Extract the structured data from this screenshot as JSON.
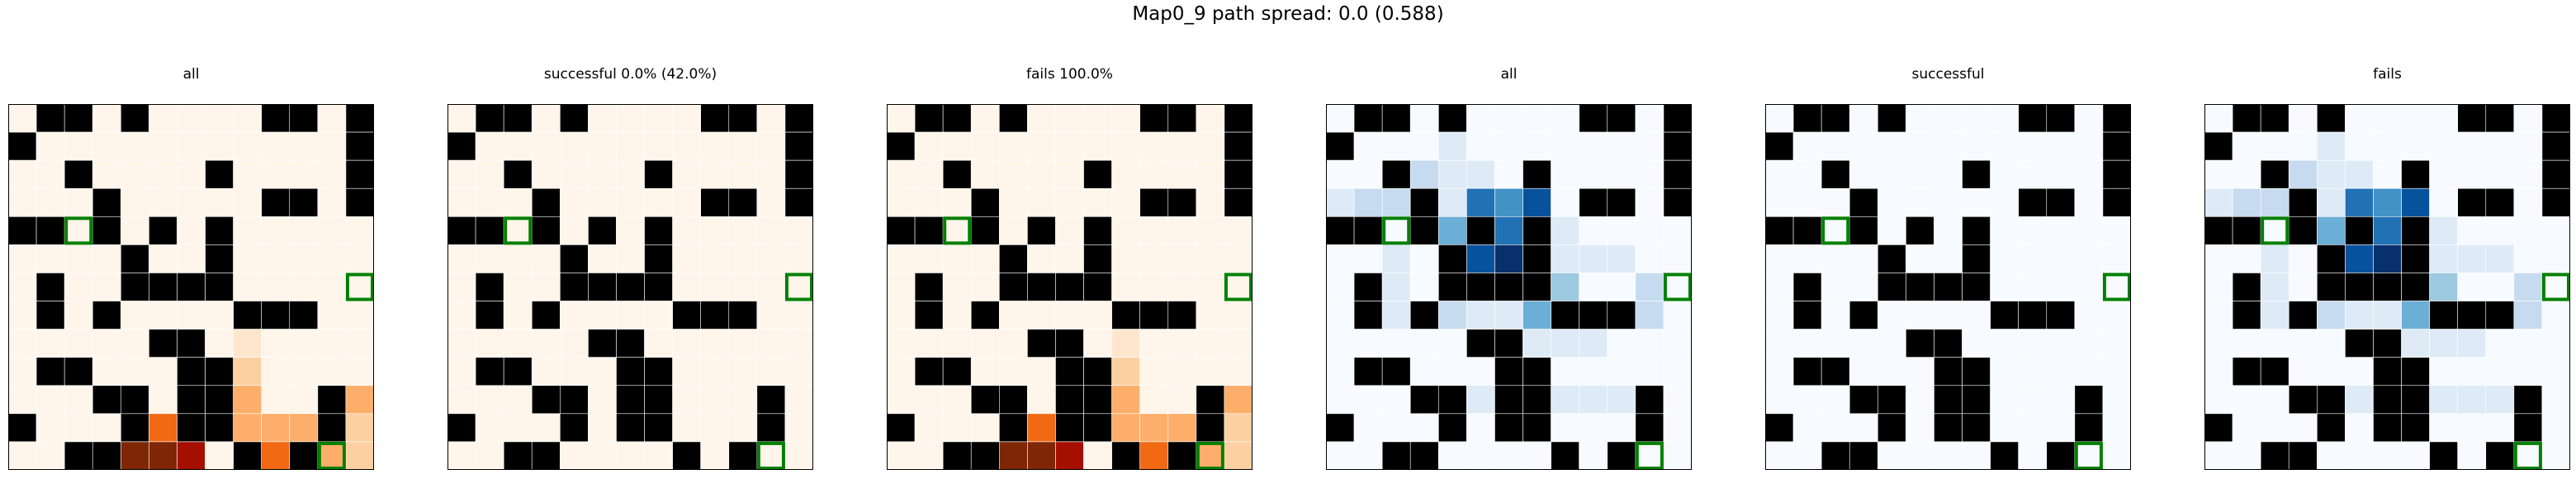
{
  "title": "Map0_9 path spread: 0.0 (0.588)",
  "colors": {
    "wall": "#000000",
    "gridline": "#ffffff",
    "goal_outline": "#008000",
    "frame": "#000000",
    "oranges": [
      "#fff5eb",
      "#fee6ce",
      "#fdd0a2",
      "#fdae6b",
      "#fd8d3c",
      "#f16913",
      "#d94801",
      "#a63603",
      "#7f2704",
      "#a50f00"
    ],
    "blues": [
      "#f7fbff",
      "#deebf7",
      "#c6dbef",
      "#9ecae1",
      "#6baed6",
      "#4292c6",
      "#2171b5",
      "#08519c",
      "#08306b"
    ]
  },
  "chart_data": [
    {
      "type": "heatmap",
      "title": "all",
      "colormap": "oranges",
      "grid": [
        13,
        13
      ],
      "goals": [
        [
          4,
          2
        ],
        [
          6,
          12
        ],
        [
          12,
          11
        ]
      ],
      "walls": "0,1;0,2;0,4;0,9;0,10;0,12;1,0;1,12;2,2;2,7;2,12;3,3;3,9;3,10;3,12;4,0;4,1;4,3;4,5;4,7;5,4;5,7;6,1;6,4;6,5;6,6;6,7;7,1;7,3;7,8;7,9;7,10;8,5;8,6;9,1;9,2;9,6;9,7;10,3;10,4;10,6;10,7;10,11;11,0;11,4;11,6;11,7;11,11;12,2;12,3;12,8;12,10",
      "heat": "8,8,0.15;9,8,0.25;10,8,0.3;11,9,0.3;11,10,0.35;11,12,0.2;12,12,0.25;10,12,0.3;11,5,0.5;11,6,0.4;11,8,0.3;12,4,0.9;12,5,0.9;12,6,1.0;12,9,0.5;12,11,0.3"
    },
    {
      "type": "heatmap",
      "title": "successful 0.0% (42.0%)",
      "colormap": "oranges",
      "grid": [
        13,
        13
      ],
      "goals": [
        [
          4,
          2
        ],
        [
          6,
          12
        ],
        [
          12,
          11
        ]
      ],
      "walls": "0,1;0,2;0,4;0,9;0,10;0,12;1,0;1,12;2,2;2,7;2,12;3,3;3,9;3,10;3,12;4,0;4,1;4,3;4,5;4,7;5,4;5,7;6,1;6,4;6,5;6,6;6,7;7,1;7,3;7,8;7,9;7,10;8,5;8,6;9,1;9,2;9,6;9,7;10,3;10,4;10,6;10,7;10,11;11,0;11,4;11,6;11,7;11,11;12,2;12,3;12,8;12,10",
      "heat": ""
    },
    {
      "type": "heatmap",
      "title": "fails 100.0%",
      "colormap": "oranges",
      "grid": [
        13,
        13
      ],
      "goals": [
        [
          4,
          2
        ],
        [
          6,
          12
        ],
        [
          12,
          11
        ]
      ],
      "walls": "0,1;0,2;0,4;0,9;0,10;0,12;1,0;1,12;2,2;2,7;2,12;3,3;3,9;3,10;3,12;4,0;4,1;4,3;4,5;4,7;5,4;5,7;6,1;6,4;6,5;6,6;6,7;7,1;7,3;7,8;7,9;7,10;8,5;8,6;9,1;9,2;9,6;9,7;10,3;10,4;10,6;10,7;10,11;11,0;11,4;11,6;11,7;11,11;12,2;12,3;12,8;12,10",
      "heat": "8,8,0.15;9,8,0.25;10,8,0.3;11,9,0.3;11,10,0.35;11,12,0.2;12,12,0.25;10,12,0.3;11,5,0.5;11,6,0.4;11,8,0.3;12,4,0.9;12,5,0.9;12,6,1.0;12,9,0.5;12,11,0.3"
    },
    {
      "type": "heatmap",
      "title": "all",
      "colormap": "blues",
      "grid": [
        13,
        13
      ],
      "goals": [
        [
          4,
          2
        ],
        [
          6,
          12
        ],
        [
          12,
          11
        ]
      ],
      "walls": "0,1;0,2;0,4;0,9;0,10;0,12;1,0;1,12;2,2;2,7;2,12;3,3;3,9;3,10;3,12;4,0;4,1;4,3;4,5;4,7;5,4;5,7;6,1;6,4;6,5;6,6;6,7;7,1;7,3;7,8;7,9;7,10;8,5;8,6;9,1;9,2;9,6;9,7;10,3;10,4;10,6;10,7;10,11;11,0;11,4;11,6;11,7;11,11;12,2;12,3;12,8;12,10",
      "heat": "1,4,0.1;2,3,0.2;2,4,0.15;2,5,0.15;3,0,0.1;3,1,0.2;3,2,0.3;3,4,0.1;3,5,0.7;3,6,0.6;3,7,0.85;4,4,0.5;4,6,0.75;4,8,0.1;5,2,0.15;5,5,0.9;5,6,0.95;5,8,0.15;5,9,0.1;5,10,0.1;6,2,0.1;6,8,0.4;6,11,0.3;7,2,0.1;7,4,0.2;7,5,0.1;7,6,0.1;7,7,0.5;7,11,0.25;8,7,0.15;8,8,0.15;8,9,0.1;10,5,0.1;10,8,0.1;10,9,0.1;10,10,0.1"
    },
    {
      "type": "heatmap",
      "title": "successful",
      "colormap": "blues",
      "grid": [
        13,
        13
      ],
      "goals": [
        [
          4,
          2
        ],
        [
          6,
          12
        ],
        [
          12,
          11
        ]
      ],
      "walls": "0,1;0,2;0,4;0,9;0,10;0,12;1,0;1,12;2,2;2,7;2,12;3,3;3,9;3,10;3,12;4,0;4,1;4,3;4,5;4,7;5,4;5,7;6,1;6,4;6,5;6,6;6,7;7,1;7,3;7,8;7,9;7,10;8,5;8,6;9,1;9,2;9,6;9,7;10,3;10,4;10,6;10,7;10,11;11,0;11,4;11,6;11,7;11,11;12,2;12,3;12,8;12,10",
      "heat": ""
    },
    {
      "type": "heatmap",
      "title": "fails",
      "colormap": "blues",
      "grid": [
        13,
        13
      ],
      "goals": [
        [
          4,
          2
        ],
        [
          6,
          12
        ],
        [
          12,
          11
        ]
      ],
      "walls": "0,1;0,2;0,4;0,9;0,10;0,12;1,0;1,12;2,2;2,7;2,12;3,3;3,9;3,10;3,12;4,0;4,1;4,3;4,5;4,7;5,4;5,7;6,1;6,4;6,5;6,6;6,7;7,1;7,3;7,8;7,9;7,10;8,5;8,6;9,1;9,2;9,6;9,7;10,3;10,4;10,6;10,7;10,11;11,0;11,4;11,6;11,7;11,11;12,2;12,3;12,8;12,10",
      "heat": "1,4,0.1;2,3,0.2;2,4,0.15;2,5,0.15;3,0,0.1;3,1,0.2;3,2,0.3;3,4,0.1;3,5,0.7;3,6,0.6;3,7,0.85;4,4,0.5;4,6,0.75;4,8,0.1;5,2,0.15;5,5,0.9;5,6,0.95;5,8,0.15;5,9,0.1;5,10,0.1;6,2,0.1;6,8,0.4;6,11,0.3;7,2,0.1;7,4,0.2;7,5,0.1;7,6,0.1;7,7,0.5;7,11,0.25;8,7,0.15;8,8,0.15;8,9,0.1;10,5,0.1;10,8,0.1;10,9,0.1;10,10,0.1"
    }
  ]
}
